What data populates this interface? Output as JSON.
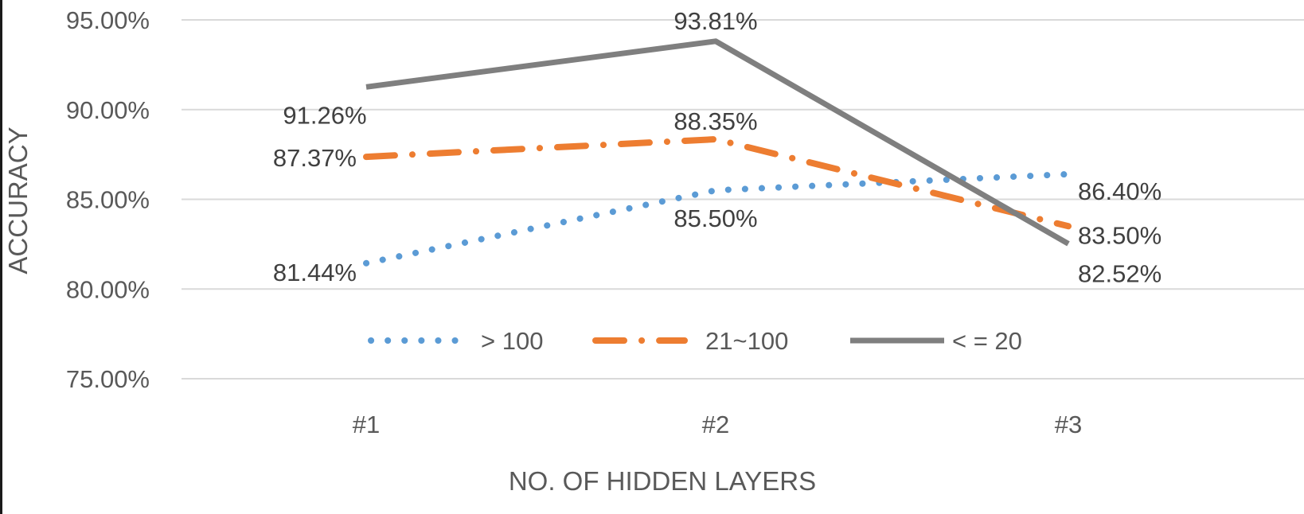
{
  "chart_data": {
    "type": "line",
    "title": "",
    "xlabel": "NO. OF HIDDEN LAYERS",
    "ylabel": "ACCURACY",
    "categories": [
      "#1",
      "#2",
      "#3"
    ],
    "ylim": [
      0.75,
      0.95
    ],
    "yticks": [
      0.75,
      0.8,
      0.85,
      0.9,
      0.95
    ],
    "ytick_labels": [
      "75.00%",
      "80.00%",
      "85.00%",
      "90.00%",
      "95.00%"
    ],
    "grid": true,
    "legend_position": "inside-bottom",
    "series": [
      {
        "name": "> 100",
        "values": [
          0.8144,
          0.855,
          0.864
        ],
        "labels": [
          "81.44%",
          "85.50%",
          "86.40%"
        ],
        "color": "#5B9BD5",
        "style": "dotted"
      },
      {
        "name": "21~100",
        "values": [
          0.8737,
          0.8835,
          0.835
        ],
        "labels": [
          "87.37%",
          "88.35%",
          "83.50%"
        ],
        "color": "#ED7D31",
        "style": "dash-dot"
      },
      {
        "name": "< = 20",
        "values": [
          0.9126,
          0.9381,
          0.8252
        ],
        "labels": [
          "91.26%",
          "93.81%",
          "82.52%"
        ],
        "color": "#7F7F7F",
        "style": "solid"
      }
    ]
  }
}
